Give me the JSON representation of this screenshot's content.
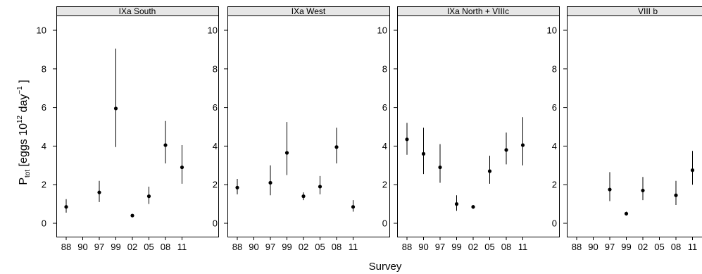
{
  "chart_data": {
    "type": "scatter",
    "xlabel": "Survey",
    "ylabel": {
      "base": "P",
      "subscript": "tot",
      "text": " [eggs 10",
      "sup1": "12",
      "text2": " day",
      "sup2": "−1",
      "close": " ]"
    },
    "ylim": [
      0,
      11
    ],
    "yticks": [
      0,
      2,
      4,
      6,
      8,
      10
    ],
    "x_categories": [
      "88",
      "90",
      "97",
      "99",
      "02",
      "05",
      "08",
      "11"
    ],
    "grid": false,
    "panels": [
      {
        "title": "IXa South",
        "points": [
          {
            "x": "88",
            "y": 0.85,
            "lo": 0.55,
            "hi": 1.25
          },
          {
            "x": "97",
            "y": 1.6,
            "lo": 1.1,
            "hi": 2.2
          },
          {
            "x": "99",
            "y": 5.95,
            "lo": 3.95,
            "hi": 9.05
          },
          {
            "x": "02",
            "y": 0.4,
            "lo": 0.35,
            "hi": 0.45
          },
          {
            "x": "05",
            "y": 1.4,
            "lo": 1.0,
            "hi": 1.9
          },
          {
            "x": "08",
            "y": 4.05,
            "lo": 3.1,
            "hi": 5.3
          },
          {
            "x": "11",
            "y": 2.9,
            "lo": 2.05,
            "hi": 4.05
          }
        ]
      },
      {
        "title": "IXa West",
        "points": [
          {
            "x": "88",
            "y": 1.85,
            "lo": 1.5,
            "hi": 2.3
          },
          {
            "x": "97",
            "y": 2.1,
            "lo": 1.45,
            "hi": 3.0
          },
          {
            "x": "99",
            "y": 3.65,
            "lo": 2.5,
            "hi": 5.25
          },
          {
            "x": "02",
            "y": 1.4,
            "lo": 1.2,
            "hi": 1.6
          },
          {
            "x": "05",
            "y": 1.9,
            "lo": 1.5,
            "hi": 2.45
          },
          {
            "x": "08",
            "y": 3.95,
            "lo": 3.1,
            "hi": 4.95
          },
          {
            "x": "11",
            "y": 0.85,
            "lo": 0.6,
            "hi": 1.2
          }
        ]
      },
      {
        "title": "IXa North + VIIIc",
        "points": [
          {
            "x": "88",
            "y": 4.35,
            "lo": 3.55,
            "hi": 5.2
          },
          {
            "x": "90",
            "y": 3.6,
            "lo": 2.55,
            "hi": 4.95
          },
          {
            "x": "97",
            "y": 2.9,
            "lo": 2.1,
            "hi": 4.1
          },
          {
            "x": "99",
            "y": 1.0,
            "lo": 0.65,
            "hi": 1.45
          },
          {
            "x": "02",
            "y": 0.85,
            "lo": 0.75,
            "hi": 0.95
          },
          {
            "x": "05",
            "y": 2.7,
            "lo": 2.05,
            "hi": 3.5
          },
          {
            "x": "08",
            "y": 3.8,
            "lo": 3.05,
            "hi": 4.7
          },
          {
            "x": "11",
            "y": 4.05,
            "lo": 3.0,
            "hi": 5.5
          }
        ]
      },
      {
        "title": "VIII b",
        "points": [
          {
            "x": "97",
            "y": 1.75,
            "lo": 1.15,
            "hi": 2.65
          },
          {
            "x": "99",
            "y": 0.5,
            "lo": 0.4,
            "hi": 0.6
          },
          {
            "x": "02",
            "y": 1.7,
            "lo": 1.2,
            "hi": 2.4
          },
          {
            "x": "08",
            "y": 1.45,
            "lo": 0.95,
            "hi": 2.2
          },
          {
            "x": "11",
            "y": 2.75,
            "lo": 2.0,
            "hi": 3.75
          }
        ]
      }
    ]
  }
}
